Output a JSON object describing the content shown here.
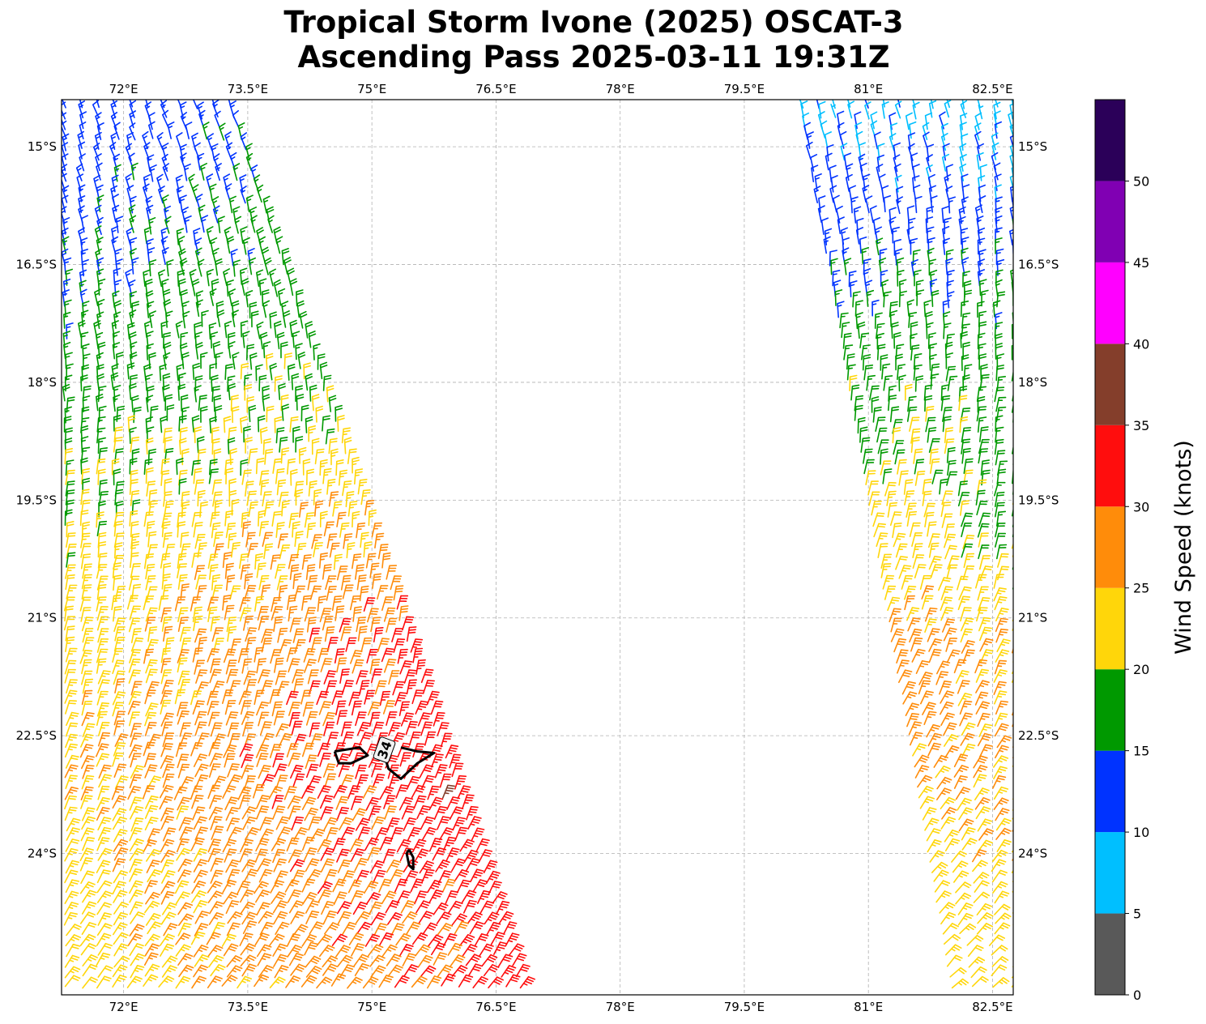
{
  "title": {
    "line1": "Tropical Storm Ivone (2025) OSCAT-3",
    "line2": "Ascending Pass 2025-03-11 19:31Z"
  },
  "map": {
    "lon_range": [
      71.25,
      82.75
    ],
    "lat_range": [
      -25.8,
      -14.4
    ],
    "lon_ticks": [
      {
        "value": 72.0,
        "label": "72°E"
      },
      {
        "value": 73.5,
        "label": "73.5°E"
      },
      {
        "value": 75.0,
        "label": "75°E"
      },
      {
        "value": 76.5,
        "label": "76.5°E"
      },
      {
        "value": 78.0,
        "label": "78°E"
      },
      {
        "value": 79.5,
        "label": "79.5°E"
      },
      {
        "value": 81.0,
        "label": "81°E"
      },
      {
        "value": 82.5,
        "label": "82.5°E"
      }
    ],
    "lat_ticks": [
      {
        "value": -15.0,
        "label": "15°S"
      },
      {
        "value": -16.5,
        "label": "16.5°S"
      },
      {
        "value": -18.0,
        "label": "18°S"
      },
      {
        "value": -19.5,
        "label": "19.5°S"
      },
      {
        "value": -21.0,
        "label": "21°S"
      },
      {
        "value": -22.5,
        "label": "22.5°S"
      },
      {
        "value": -24.0,
        "label": "24°S"
      }
    ],
    "contour_label": "34"
  },
  "chart_data": {
    "type": "wind_barbs",
    "title": "Tropical Storm Ivone (2025) OSCAT-3 Ascending Pass 2025-03-11 19:31Z",
    "units": "knots",
    "contour_34kt_lonlat": [
      [
        [
          74.55,
          -22.7
        ],
        [
          74.85,
          -22.65
        ],
        [
          74.95,
          -22.75
        ],
        [
          74.75,
          -22.85
        ],
        [
          74.6,
          -22.85
        ],
        [
          74.55,
          -22.7
        ]
      ],
      [
        [
          75.35,
          -22.65
        ],
        [
          75.55,
          -22.7
        ],
        [
          75.75,
          -22.72
        ],
        [
          75.55,
          -22.85
        ],
        [
          75.35,
          -23.05
        ],
        [
          75.2,
          -22.92
        ],
        [
          75.15,
          -22.75
        ]
      ],
      [
        [
          75.45,
          -23.95
        ],
        [
          75.5,
          -24.05
        ],
        [
          75.5,
          -24.2
        ],
        [
          75.45,
          -24.15
        ],
        [
          75.42,
          -24.0
        ],
        [
          75.45,
          -23.95
        ]
      ]
    ],
    "swaths": [
      {
        "name": "west swath",
        "edges_lonlat": {
          "west": [
            [
              71.3,
              -14.45
            ],
            [
              71.3,
              -25.75
            ]
          ],
          "east_top": [
            73.3,
            -14.45
          ],
          "east_bottom": [
            76.8,
            -25.75
          ]
        },
        "speed_knots_by_latitude": [
          {
            "lat": -14.5,
            "west_kt": 12,
            "east_kt": 13
          },
          {
            "lat": -16.0,
            "west_kt": 13,
            "east_kt": 17
          },
          {
            "lat": -17.5,
            "west_kt": 17,
            "east_kt": 18
          },
          {
            "lat": -19.0,
            "west_kt": 18,
            "east_kt": 22
          },
          {
            "lat": -20.0,
            "west_kt": 21,
            "east_kt": 26
          },
          {
            "lat": -21.0,
            "west_kt": 22,
            "east_kt": 30
          },
          {
            "lat": -22.0,
            "west_kt": 23,
            "east_kt": 33
          },
          {
            "lat": -23.0,
            "west_kt": 24,
            "east_kt": 34
          },
          {
            "lat": -24.0,
            "west_kt": 23,
            "east_kt": 33
          },
          {
            "lat": -25.7,
            "west_kt": 22,
            "east_kt": 32
          }
        ]
      },
      {
        "name": "east swath",
        "edges_lonlat": {
          "west_top": [
            80.2,
            -14.45
          ],
          "west_bottom": [
            82.0,
            -25.75
          ],
          "east": [
            [
              82.75,
              -14.45
            ],
            [
              82.75,
              -25.75
            ]
          ]
        },
        "speed_knots_by_latitude": [
          {
            "lat": -14.5,
            "west_kt": 9,
            "east_kt": 8
          },
          {
            "lat": -15.5,
            "west_kt": 12,
            "east_kt": 10
          },
          {
            "lat": -16.5,
            "west_kt": 13,
            "east_kt": 16
          },
          {
            "lat": -17.5,
            "west_kt": 17,
            "east_kt": 17
          },
          {
            "lat": -18.5,
            "west_kt": 19,
            "east_kt": 18
          },
          {
            "lat": -19.5,
            "west_kt": 22,
            "east_kt": 18
          },
          {
            "lat": -20.5,
            "west_kt": 23,
            "east_kt": 21
          },
          {
            "lat": -21.5,
            "west_kt": 28,
            "east_kt": 25
          },
          {
            "lat": -22.5,
            "west_kt": 27,
            "east_kt": 26
          },
          {
            "lat": -23.5,
            "west_kt": 25,
            "east_kt": 25
          },
          {
            "lat": -24.5,
            "west_kt": 23,
            "east_kt": 24
          },
          {
            "lat": -25.7,
            "west_kt": 22,
            "east_kt": 22
          }
        ]
      }
    ]
  },
  "colorbar": {
    "label": "Wind Speed (knots)",
    "bins": [
      {
        "min": 0,
        "max": 5,
        "color": "#595959"
      },
      {
        "min": 5,
        "max": 10,
        "color": "#00bfff"
      },
      {
        "min": 10,
        "max": 15,
        "color": "#0033ff"
      },
      {
        "min": 15,
        "max": 20,
        "color": "#009900"
      },
      {
        "min": 20,
        "max": 25,
        "color": "#ffd60a"
      },
      {
        "min": 25,
        "max": 30,
        "color": "#ff8c0a"
      },
      {
        "min": 30,
        "max": 35,
        "color": "#ff0d0d"
      },
      {
        "min": 35,
        "max": 40,
        "color": "#843e2b"
      },
      {
        "min": 40,
        "max": 45,
        "color": "#ff00ff"
      },
      {
        "min": 45,
        "max": 50,
        "color": "#8000b3"
      },
      {
        "min": 50,
        "max": 55,
        "color": "#2b0059"
      }
    ],
    "ticks": [
      {
        "value": 0,
        "label": "0"
      },
      {
        "value": 5,
        "label": "5"
      },
      {
        "value": 10,
        "label": "10"
      },
      {
        "value": 15,
        "label": "15"
      },
      {
        "value": 20,
        "label": "20"
      },
      {
        "value": 25,
        "label": "25"
      },
      {
        "value": 30,
        "label": "30"
      },
      {
        "value": 35,
        "label": "35"
      },
      {
        "value": 40,
        "label": "40"
      },
      {
        "value": 45,
        "label": "45"
      },
      {
        "value": 50,
        "label": "50"
      }
    ]
  }
}
